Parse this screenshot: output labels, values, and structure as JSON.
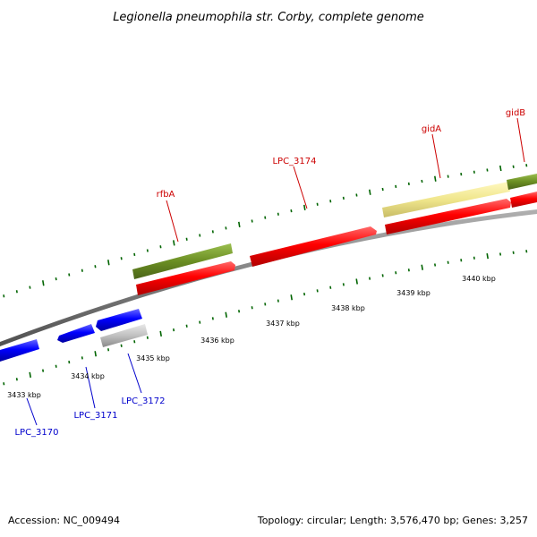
{
  "title": "Legionella pneumophila str. Corby, complete genome",
  "footer": {
    "accession": "Accession: NC_009494",
    "summary": "Topology: circular; Length: 3,576,470 bp; Genes: 3,257"
  },
  "scale_labels": [
    "3433 kbp",
    "3434 kbp",
    "3435 kbp",
    "3436 kbp",
    "3437 kbp",
    "3438 kbp",
    "3439 kbp",
    "3440 kbp"
  ],
  "gene_labels": {
    "rfbA": "rfbA",
    "LPC_3174": "LPC_3174",
    "gidA": "gidA",
    "gidB": "gidB",
    "LPC_3170": "LPC_3170",
    "LPC_3171": "LPC_3171",
    "LPC_3172": "LPC_3172"
  },
  "colors": {
    "forward_cds": "#ff0000",
    "reverse_cds": "#0000ff",
    "forward_gene": "#6b8e23",
    "trna_like": "#f0e68c",
    "pseudo": "#c0c0c0",
    "backbone": "#808080",
    "tick": "#006400",
    "label_forward": "#cc0000",
    "label_reverse": "#0000cc"
  }
}
